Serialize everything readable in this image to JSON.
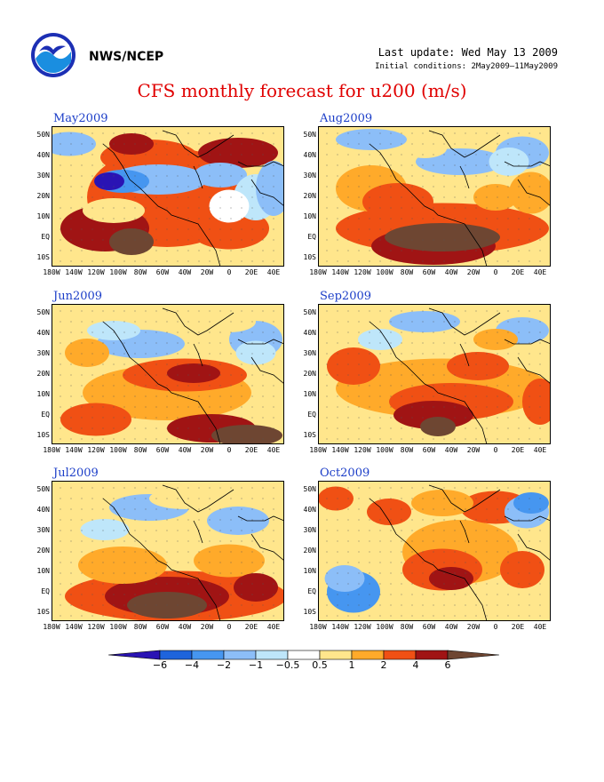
{
  "header": {
    "agency": "NWS/NCEP",
    "last_update": "Last update: Wed May 13 2009",
    "initial_conditions": "Initial conditions: 2May2009–11May2009",
    "title": "CFS monthly forecast for u200 (m/s)"
  },
  "axes": {
    "lat_labels": [
      "50N",
      "40N",
      "30N",
      "20N",
      "10N",
      "EQ",
      "10S"
    ],
    "lon_labels": [
      "180W",
      "140W",
      "120W",
      "100W",
      "80W",
      "60W",
      "40W",
      "20W",
      "0",
      "20E",
      "40E"
    ]
  },
  "panels": [
    {
      "title": "May2009"
    },
    {
      "title": "Aug2009"
    },
    {
      "title": "Jun2009"
    },
    {
      "title": "Sep2009"
    },
    {
      "title": "Jul2009"
    },
    {
      "title": "Oct2009"
    }
  ],
  "colorbar": {
    "labels": [
      "−6",
      "−4",
      "−2",
      "−1",
      "−0.5",
      "0.5",
      "1",
      "2",
      "4",
      "6"
    ],
    "colors": [
      "#2a14b4",
      "#1e64dc",
      "#4696f0",
      "#8cbef8",
      "#bee6fa",
      "#ffffff",
      "#ffe68c",
      "#ffaa2a",
      "#f05014",
      "#a01414",
      "#6e4632"
    ]
  }
}
